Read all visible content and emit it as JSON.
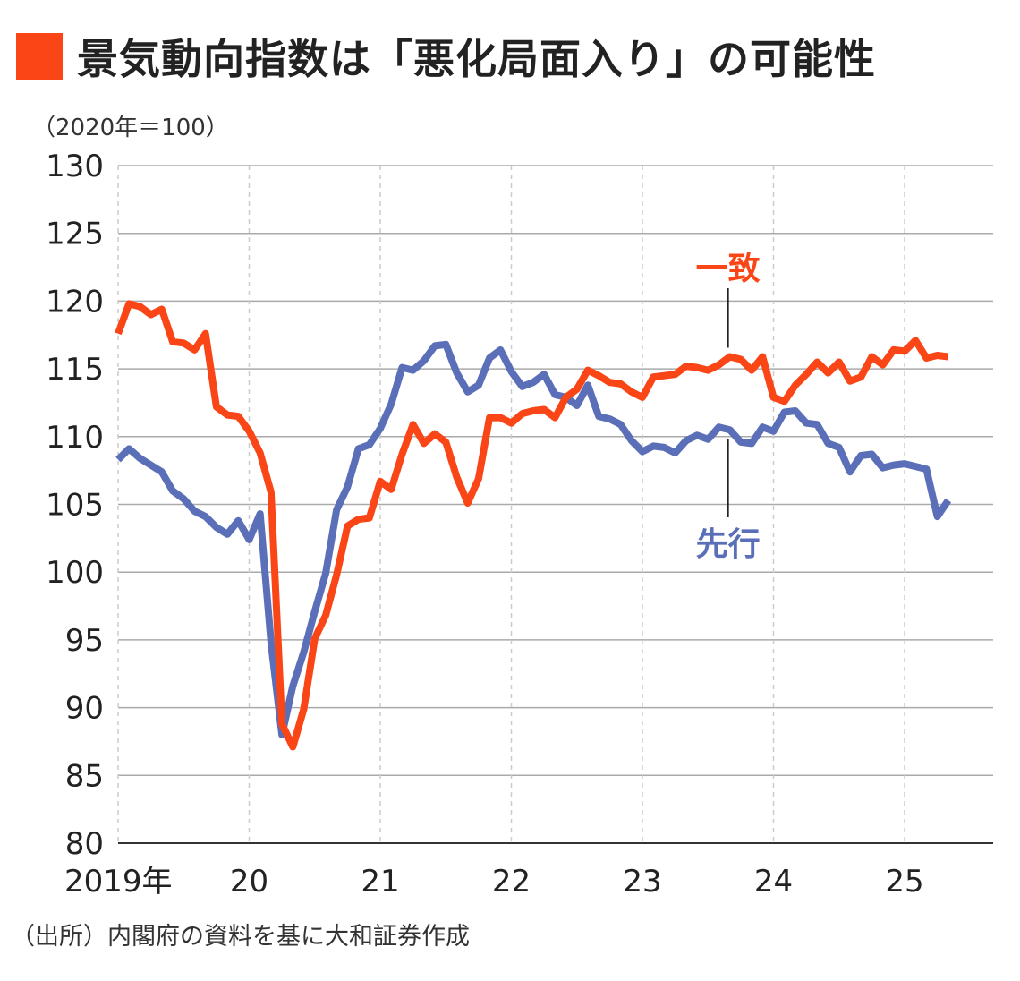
{
  "title": "景気動向指数は「悪化局面入り」の可能性",
  "unit_label": "（2020年＝100）",
  "source": "（出所）内閣府の資料を基に大和証券作成",
  "colors": {
    "accent": "#fa4616",
    "coincident": "#fa4616",
    "leading": "#5b6fb8",
    "grid": "#aaaaaa",
    "axis": "#333333"
  },
  "chart_data": {
    "type": "line",
    "title": "景気動向指数は「悪化局面入り」の可能性",
    "ylabel": "（2020年＝100）",
    "xlabel": "",
    "ylim": [
      80,
      130
    ],
    "yticks": [
      130,
      125,
      120,
      115,
      110,
      105,
      100,
      95,
      90,
      85,
      80
    ],
    "x_start": "2019-01",
    "xticks": [
      {
        "label": "2019年",
        "month": 0
      },
      {
        "label": "20",
        "month": 12
      },
      {
        "label": "21",
        "month": 24
      },
      {
        "label": "22",
        "month": 36
      },
      {
        "label": "23",
        "month": 48
      },
      {
        "label": "24",
        "month": 60
      },
      {
        "label": "25",
        "month": 72
      }
    ],
    "grid": true,
    "series": [
      {
        "name": "一致",
        "color": "#fa4616",
        "values": [
          117.6,
          119.8,
          119.6,
          119.0,
          119.4,
          117.0,
          116.9,
          116.4,
          117.6,
          112.2,
          111.6,
          111.5,
          110.4,
          108.8,
          105.9,
          88.8,
          87.1,
          89.9,
          95.1,
          96.8,
          99.8,
          103.4,
          103.9,
          104.0,
          106.7,
          106.1,
          108.7,
          110.9,
          109.5,
          110.2,
          109.6,
          107.0,
          105.1,
          106.9,
          111.4,
          111.4,
          111.0,
          111.7,
          111.9,
          112.0,
          111.4,
          112.9,
          113.5,
          114.9,
          114.5,
          114.0,
          113.9,
          113.3,
          112.9,
          114.4,
          114.5,
          114.6,
          115.2,
          115.1,
          114.9,
          115.3,
          115.9,
          115.7,
          114.9,
          115.9,
          112.9,
          112.6,
          113.8,
          114.6,
          115.5,
          114.7,
          115.5,
          114.1,
          114.4,
          115.9,
          115.3,
          116.4,
          116.3,
          117.1,
          115.8,
          116.0,
          115.9
        ]
      },
      {
        "name": "先行",
        "color": "#5b6fb8",
        "values": [
          108.3,
          109.1,
          108.4,
          107.9,
          107.4,
          106.0,
          105.4,
          104.5,
          104.1,
          103.3,
          102.8,
          103.8,
          102.4,
          104.3,
          94.8,
          88.0,
          91.6,
          94.1,
          97.1,
          99.9,
          104.6,
          106.3,
          109.1,
          109.4,
          110.6,
          112.4,
          115.1,
          114.9,
          115.6,
          116.7,
          116.8,
          114.7,
          113.3,
          113.8,
          115.8,
          116.4,
          114.8,
          113.7,
          114.0,
          114.6,
          113.1,
          112.9,
          112.3,
          113.8,
          111.5,
          111.3,
          110.9,
          109.7,
          108.9,
          109.3,
          109.2,
          108.8,
          109.7,
          110.1,
          109.8,
          110.7,
          110.5,
          109.6,
          109.5,
          110.7,
          110.4,
          111.8,
          111.9,
          111.0,
          110.9,
          109.5,
          109.2,
          107.4,
          108.6,
          108.7,
          107.7,
          107.9,
          108.0,
          107.8,
          107.6,
          104.1,
          105.3
        ]
      }
    ],
    "annotations": [
      {
        "text": "一致",
        "series": "一致",
        "month": 56
      },
      {
        "text": "先行",
        "series": "先行",
        "month": 56
      }
    ]
  }
}
